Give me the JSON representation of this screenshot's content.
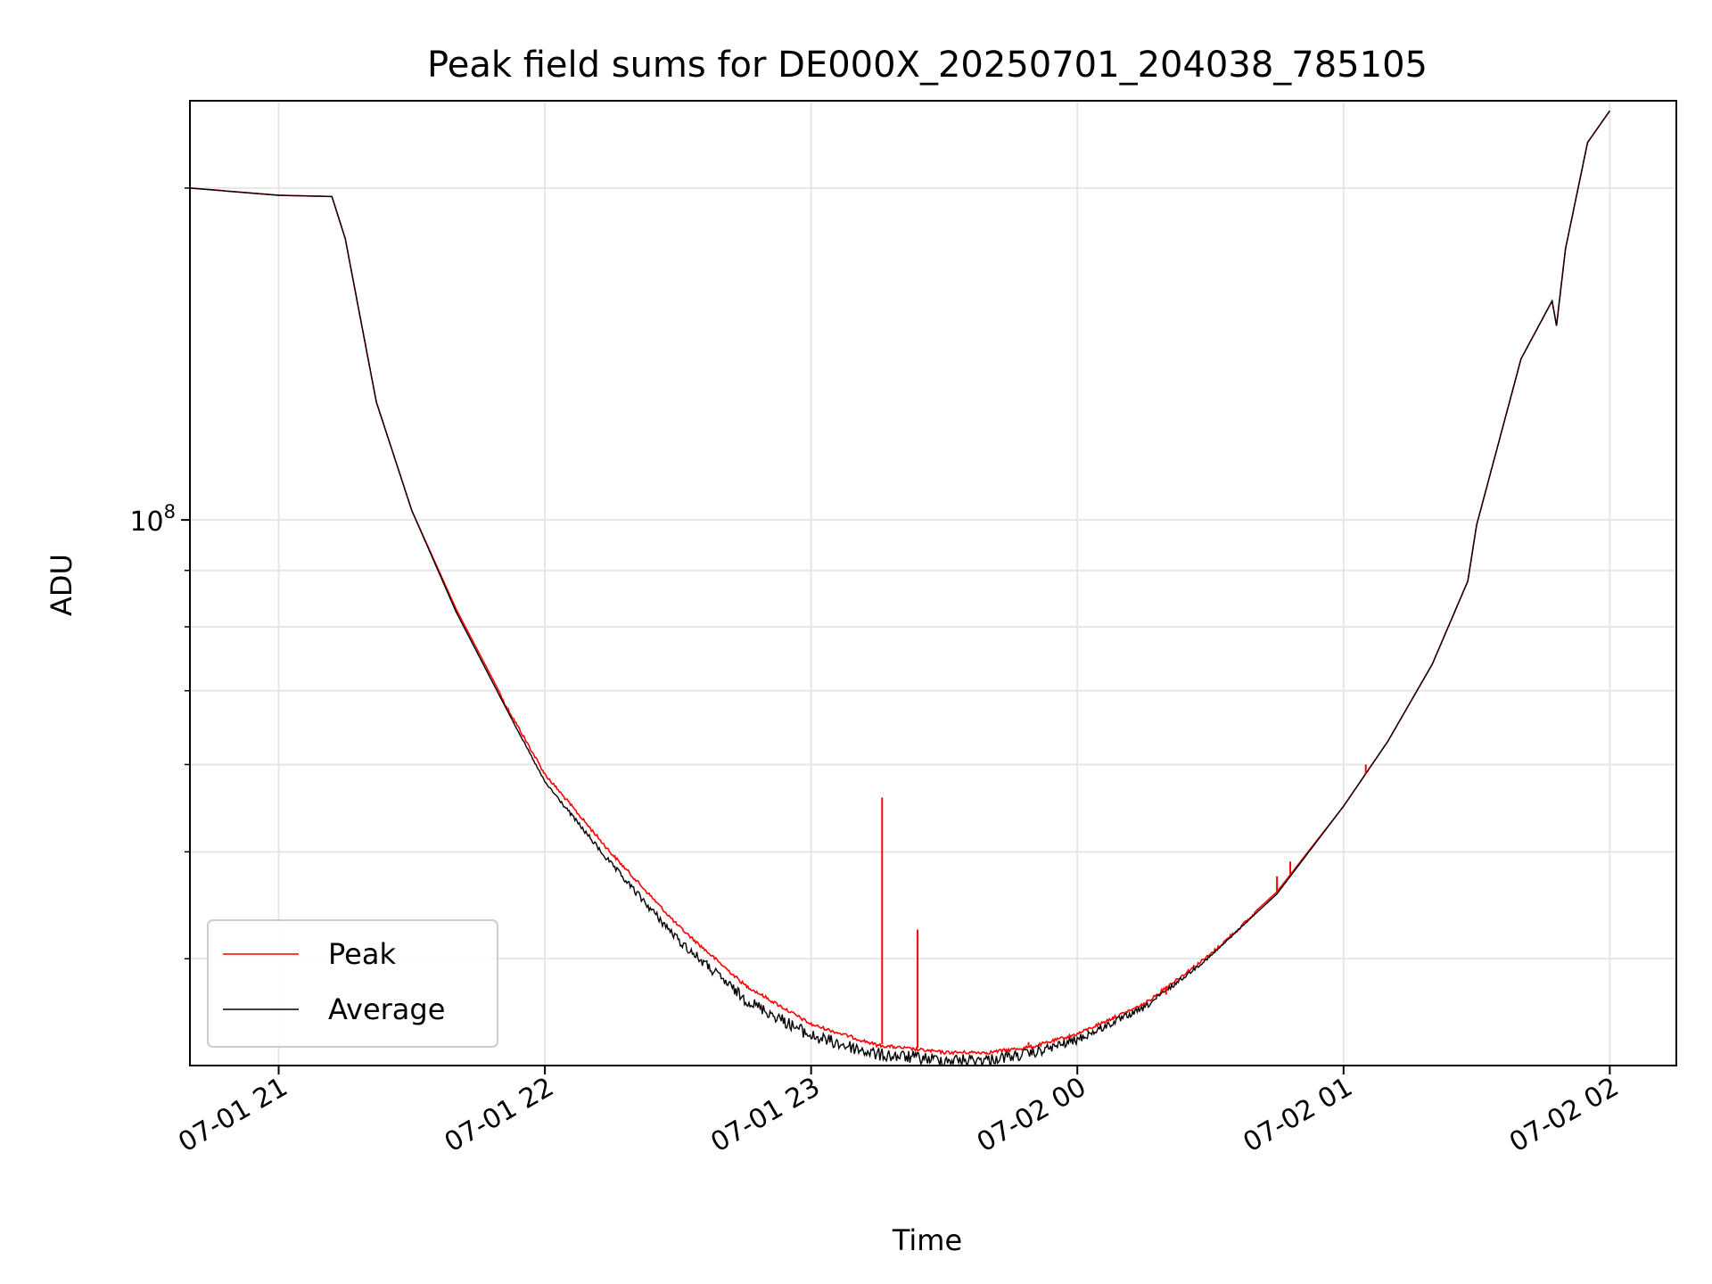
{
  "chart_data": {
    "type": "line",
    "title": "Peak field sums for DE000X_20250701_204038_785105",
    "xlabel": "Time",
    "ylabel": "ADU",
    "xlim": [
      "2025-07-01 20:40",
      "2025-07-02 02:15"
    ],
    "ylim": [
      32000000,
      240000000
    ],
    "yscale": "log",
    "grid": true,
    "legend": "lower-left",
    "x_ticks": [
      {
        "value": "2025-07-01 21:00",
        "label": "07-01 21"
      },
      {
        "value": "2025-07-01 22:00",
        "label": "07-01 22"
      },
      {
        "value": "2025-07-01 23:00",
        "label": "07-01 23"
      },
      {
        "value": "2025-07-02 00:00",
        "label": "07-02 00"
      },
      {
        "value": "2025-07-02 01:00",
        "label": "07-02 01"
      },
      {
        "value": "2025-07-02 02:00",
        "label": "07-02 02"
      }
    ],
    "y_ticks": [
      {
        "value": 100000000,
        "label": "10",
        "exponent": "8"
      }
    ],
    "y_minor_ticks": [
      40000000,
      50000000,
      60000000,
      70000000,
      80000000,
      90000000,
      200000000
    ],
    "series": [
      {
        "name": "Peak",
        "color": "#ff0000",
        "x": [
          "2025-07-01 20:40",
          "2025-07-01 21:00",
          "2025-07-01 21:12",
          "2025-07-01 21:15",
          "2025-07-01 21:22",
          "2025-07-01 21:30",
          "2025-07-01 21:40",
          "2025-07-01 21:50",
          "2025-07-01 22:00",
          "2025-07-01 22:15",
          "2025-07-01 22:30",
          "2025-07-01 22:45",
          "2025-07-01 23:00",
          "2025-07-01 23:15",
          "2025-07-01 23:30",
          "2025-07-01 23:40",
          "2025-07-01 23:50",
          "2025-07-02 00:00",
          "2025-07-02 00:15",
          "2025-07-02 00:30",
          "2025-07-02 00:45",
          "2025-07-02 01:00",
          "2025-07-02 01:10",
          "2025-07-02 01:20",
          "2025-07-02 01:28",
          "2025-07-02 01:30",
          "2025-07-02 01:40",
          "2025-07-02 01:47",
          "2025-07-02 01:48",
          "2025-07-02 01:50",
          "2025-07-02 01:55",
          "2025-07-02 02:00"
        ],
        "y": [
          200000000,
          197000000,
          196500000,
          180000000,
          128000000,
          102000000,
          83000000,
          69500000,
          59000000,
          50000000,
          43000000,
          38000000,
          35000000,
          33500000,
          33000000,
          33000000,
          33400000,
          34300000,
          36500000,
          40500000,
          46000000,
          55000000,
          63000000,
          74000000,
          88000000,
          99000000,
          140000000,
          158000000,
          150000000,
          176000000,
          220000000,
          235000000
        ],
        "spikes": [
          {
            "x": "2025-07-01 23:16",
            "y": 56000000
          },
          {
            "x": "2025-07-01 23:24",
            "y": 42500000
          },
          {
            "x": "2025-07-01 23:49",
            "y": 33600000
          },
          {
            "x": "2025-07-02 00:02",
            "y": 34500000
          },
          {
            "x": "2025-07-02 00:08",
            "y": 35300000
          },
          {
            "x": "2025-07-02 00:15",
            "y": 36300000
          },
          {
            "x": "2025-07-02 00:20",
            "y": 37100000
          },
          {
            "x": "2025-07-02 00:45",
            "y": 47500000
          },
          {
            "x": "2025-07-02 00:48",
            "y": 49000000
          },
          {
            "x": "2025-07-02 01:05",
            "y": 60000000
          }
        ]
      },
      {
        "name": "Average",
        "color": "#000000",
        "x": [
          "2025-07-01 20:40",
          "2025-07-01 21:00",
          "2025-07-01 21:12",
          "2025-07-01 21:15",
          "2025-07-01 21:22",
          "2025-07-01 21:30",
          "2025-07-01 21:40",
          "2025-07-01 21:50",
          "2025-07-01 22:00",
          "2025-07-01 22:15",
          "2025-07-01 22:30",
          "2025-07-01 22:45",
          "2025-07-01 23:00",
          "2025-07-01 23:15",
          "2025-07-01 23:30",
          "2025-07-01 23:40",
          "2025-07-01 23:50",
          "2025-07-02 00:00",
          "2025-07-02 00:15",
          "2025-07-02 00:30",
          "2025-07-02 00:45",
          "2025-07-02 01:00",
          "2025-07-02 01:10",
          "2025-07-02 01:20",
          "2025-07-02 01:28",
          "2025-07-02 01:30",
          "2025-07-02 01:40",
          "2025-07-02 01:47",
          "2025-07-02 01:48",
          "2025-07-02 01:50",
          "2025-07-02 01:55",
          "2025-07-02 02:00"
        ],
        "y": [
          200000000,
          197000000,
          196500000,
          180000000,
          128000000,
          102000000,
          82500000,
          69000000,
          58000000,
          49000000,
          42000000,
          37200000,
          34500000,
          33200000,
          32800000,
          32800000,
          33200000,
          34100000,
          36300000,
          40300000,
          45800000,
          55000000,
          63000000,
          74000000,
          88000000,
          99000000,
          140000000,
          158000000,
          150000000,
          176000000,
          220000000,
          235000000
        ],
        "noise_window": [
          "2025-07-01 21:50",
          "2025-07-02 00:40"
        ]
      }
    ]
  }
}
